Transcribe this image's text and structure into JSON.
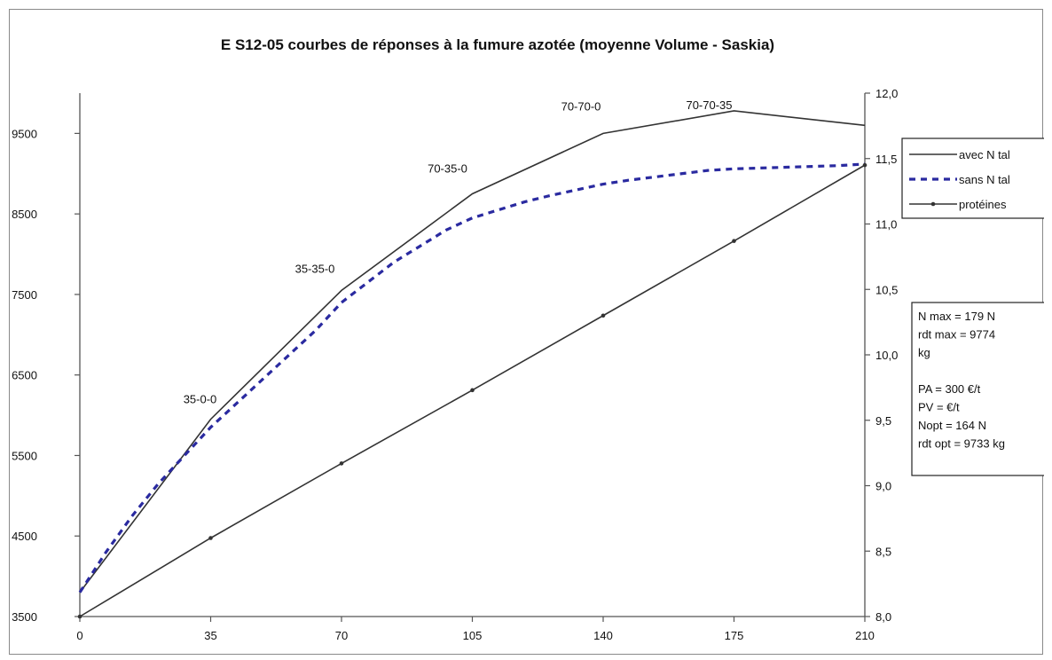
{
  "chart_data": {
    "type": "line",
    "title": "E S12-05 courbes de réponses à la fumure azotée (moyenne Volume - Saskia)",
    "x": [
      0,
      35,
      70,
      105,
      140,
      175,
      210
    ],
    "x_ticks": [
      "0",
      "35",
      "70",
      "105",
      "140",
      "175",
      "210"
    ],
    "xlim": [
      0,
      210
    ],
    "ylim_left": [
      3500,
      10000
    ],
    "y_ticks_left": [
      "3500",
      "4500",
      "5500",
      "6500",
      "7500",
      "8500",
      "9500"
    ],
    "ylim_right": [
      8.0,
      12.0
    ],
    "y_ticks_right": [
      "8,0",
      "8,5",
      "9,0",
      "9,5",
      "10,0",
      "10,5",
      "11,0",
      "11,5",
      "12,0"
    ],
    "series": [
      {
        "name": "avec N tal",
        "axis": "left",
        "style": "solid",
        "x": [
          0,
          35,
          70,
          105,
          140,
          175,
          210
        ],
        "values": [
          3800,
          5950,
          7550,
          8750,
          9500,
          9780,
          9600
        ]
      },
      {
        "name": "sans N tal",
        "axis": "left",
        "style": "dashed",
        "x": [
          0,
          7,
          14,
          21,
          28,
          35,
          42,
          49,
          56,
          63,
          70,
          77,
          84,
          91,
          98,
          105,
          112,
          119,
          126,
          133,
          140,
          147,
          154,
          161,
          168,
          175,
          182,
          189,
          196,
          203,
          210
        ],
        "values": [
          3800,
          4300,
          4750,
          5150,
          5500,
          5850,
          6150,
          6450,
          6750,
          7050,
          7400,
          7650,
          7900,
          8100,
          8300,
          8450,
          8550,
          8650,
          8730,
          8800,
          8870,
          8920,
          8960,
          9000,
          9040,
          9060,
          9070,
          9080,
          9090,
          9100,
          9120
        ]
      },
      {
        "name": "protéines",
        "axis": "right",
        "style": "solid-markers",
        "x": [
          0,
          35,
          70,
          105,
          140,
          175,
          210
        ],
        "values": [
          8.0,
          8.6,
          9.17,
          9.73,
          10.3,
          10.87,
          11.45
        ]
      }
    ],
    "annotations": [
      {
        "text": "35-0-0",
        "x": 35,
        "series": "avec N tal"
      },
      {
        "text": "35-35-0",
        "x": 70,
        "series": "avec N tal"
      },
      {
        "text": "70-35-0",
        "x": 105,
        "series": "avec N tal"
      },
      {
        "text": "70-70-0",
        "x": 140,
        "series": "avec N tal"
      },
      {
        "text": "70-70-35",
        "x": 175,
        "series": "avec N tal"
      }
    ],
    "info_box": [
      "N max = 179 N",
      "rdt max = 9774",
      "kg",
      "",
      "PA = 300 €/t",
      "PV = €/t",
      "Nopt = 164 N",
      "rdt opt = 9733 kg"
    ],
    "legend_position": "right",
    "grid": false,
    "colors": {
      "avec_n_tal": "#333333",
      "sans_n_tal": "#2a2aa0",
      "proteines": "#333333",
      "axis": "#555555"
    }
  }
}
